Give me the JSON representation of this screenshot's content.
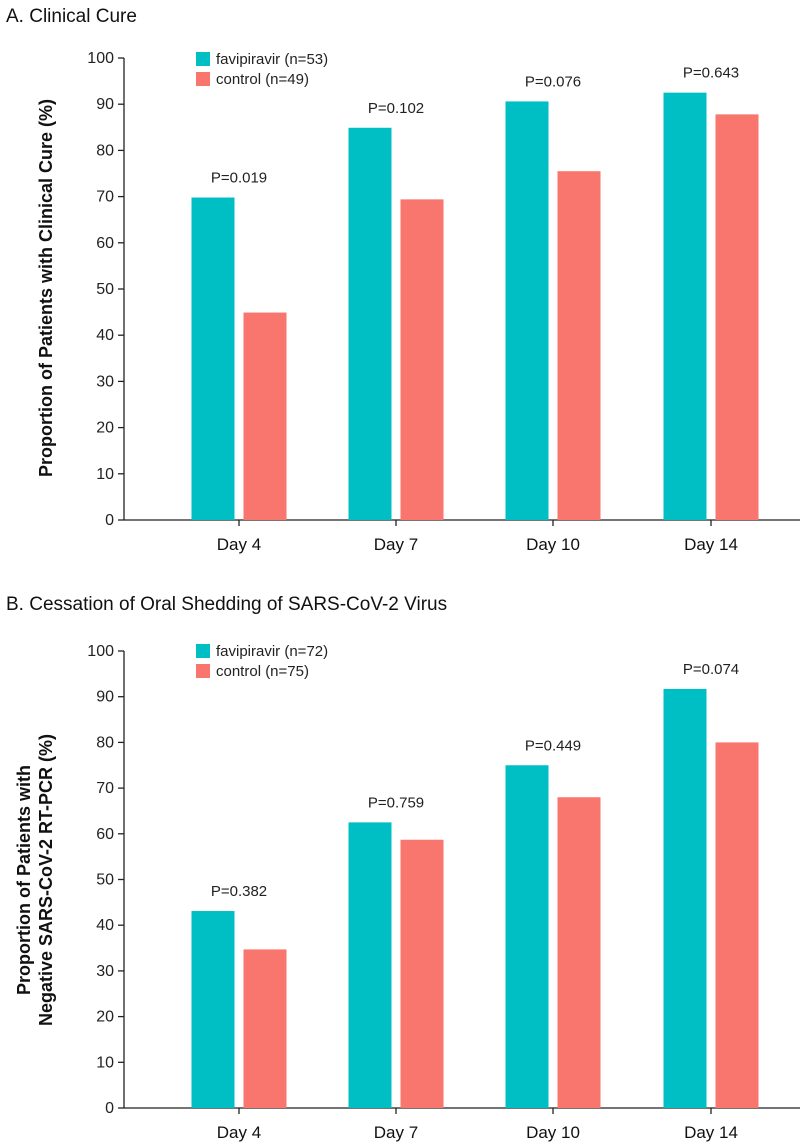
{
  "colors": {
    "favipiravir": "#00BFC4",
    "control": "#F8766D",
    "axis": "#222222"
  },
  "chart_data": [
    {
      "type": "bar",
      "title": "A. Clinical Cure",
      "ylabel": "Proportion of Patients with Clinical Cure (%)",
      "ylim": [
        0,
        100
      ],
      "yticks": [
        0,
        10,
        20,
        30,
        40,
        50,
        60,
        70,
        80,
        90,
        100
      ],
      "categories": [
        "Day 4",
        "Day 7",
        "Day 10",
        "Day 14"
      ],
      "series": [
        {
          "name": "favipiravir (n=53)",
          "values": [
            69.8,
            84.9,
            90.6,
            92.5
          ]
        },
        {
          "name": "control (n=49)",
          "values": [
            44.9,
            69.4,
            75.5,
            87.8
          ]
        }
      ],
      "annotations": [
        "P=0.019",
        "P=0.102",
        "P=0.076",
        "P=0.643"
      ],
      "legend": "top-left",
      "grid": false
    },
    {
      "type": "bar",
      "title": "B. Cessation of Oral Shedding of SARS-CoV-2 Virus",
      "ylabel": [
        "Proportion of Patients with",
        "Negative SARS-CoV-2 RT-PCR (%)"
      ],
      "ylim": [
        0,
        100
      ],
      "yticks": [
        0,
        10,
        20,
        30,
        40,
        50,
        60,
        70,
        80,
        90,
        100
      ],
      "categories": [
        "Day 4",
        "Day 7",
        "Day 10",
        "Day 14"
      ],
      "series": [
        {
          "name": "favipiravir (n=72)",
          "values": [
            43.1,
            62.5,
            75.0,
            91.7
          ]
        },
        {
          "name": "control (n=75)",
          "values": [
            34.7,
            58.7,
            68.0,
            80.0
          ]
        }
      ],
      "annotations": [
        "P=0.382",
        "P=0.759",
        "P=0.449",
        "P=0.074"
      ],
      "legend": "top-left",
      "grid": false
    }
  ]
}
